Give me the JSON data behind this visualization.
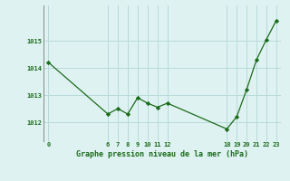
{
  "x": [
    0,
    6,
    7,
    8,
    9,
    10,
    11,
    12,
    18,
    19,
    20,
    21,
    22,
    23
  ],
  "y": [
    1014.2,
    1012.3,
    1012.5,
    1012.3,
    1012.9,
    1012.7,
    1012.55,
    1012.7,
    1011.75,
    1012.2,
    1013.2,
    1014.3,
    1015.05,
    1015.75
  ],
  "line_color": "#1a6b1a",
  "marker_color": "#1a6b1a",
  "bg_color": "#dff2f2",
  "grid_color": "#b8dada",
  "xlabel": "Graphe pression niveau de la mer (hPa)",
  "xticks": [
    0,
    6,
    7,
    8,
    9,
    10,
    11,
    12,
    18,
    19,
    20,
    21,
    22,
    23
  ],
  "yticks": [
    1012,
    1013,
    1014,
    1015
  ],
  "ylim": [
    1011.3,
    1016.3
  ],
  "xlim": [
    -0.5,
    23.5
  ]
}
